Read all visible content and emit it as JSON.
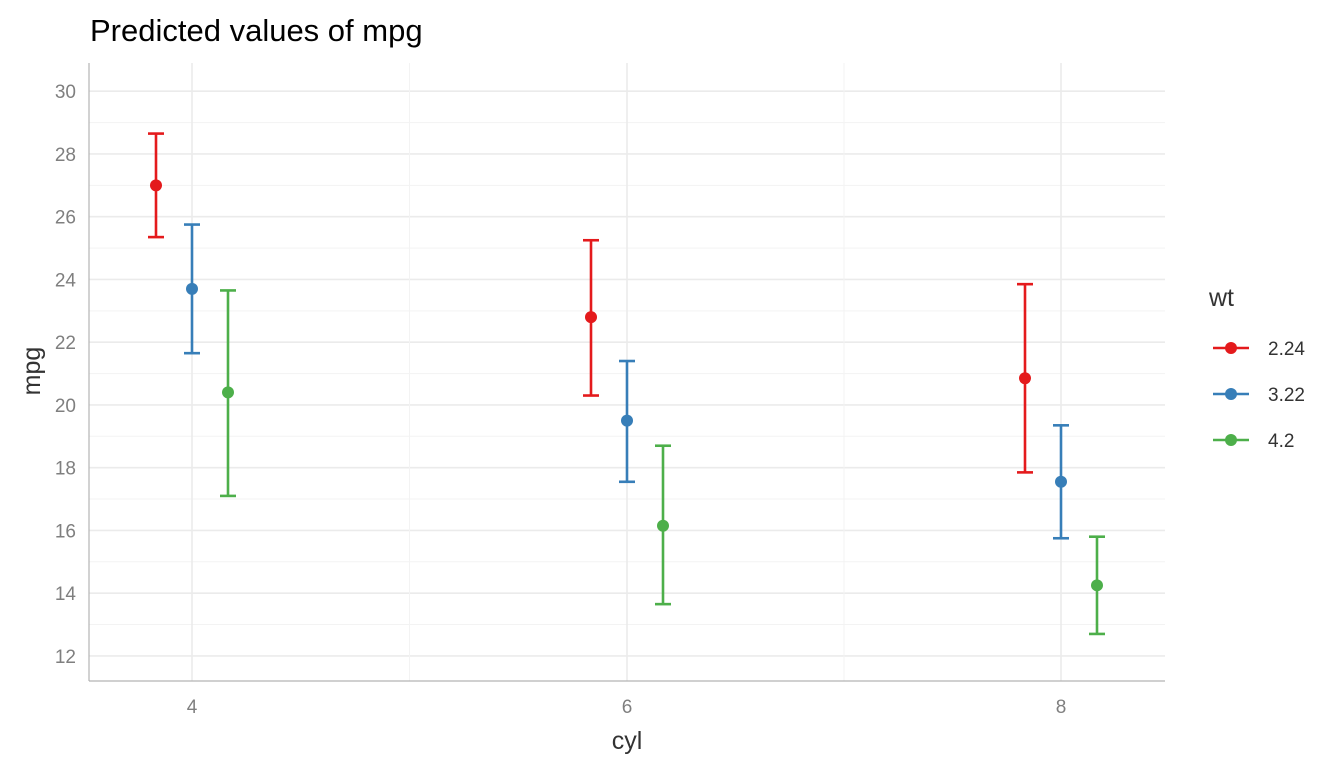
{
  "chart_data": {
    "type": "scatter",
    "title": "Predicted values of mpg",
    "xlabel": "cyl",
    "ylabel": "mpg",
    "categories": [
      "4",
      "6",
      "8"
    ],
    "ylim": [
      11.2,
      30.9
    ],
    "yticks": [
      12,
      14,
      16,
      18,
      20,
      22,
      24,
      26,
      28,
      30
    ],
    "grid": true,
    "legend": {
      "title": "wt",
      "position": "right"
    },
    "error_bars": true,
    "series": [
      {
        "name": "2.24",
        "color": "#e41a1c",
        "values": [
          27.0,
          22.8,
          20.85
        ],
        "lower": [
          25.35,
          20.3,
          17.85
        ],
        "upper": [
          28.65,
          25.25,
          23.85
        ]
      },
      {
        "name": "3.22",
        "color": "#377eb8",
        "values": [
          23.7,
          19.5,
          17.55
        ],
        "lower": [
          21.65,
          17.55,
          15.75
        ],
        "upper": [
          25.75,
          21.4,
          19.35
        ]
      },
      {
        "name": "4.2",
        "color": "#4daf4a",
        "values": [
          20.4,
          16.15,
          14.25
        ],
        "lower": [
          17.1,
          13.65,
          12.7
        ],
        "upper": [
          23.65,
          18.7,
          15.8
        ]
      }
    ]
  }
}
